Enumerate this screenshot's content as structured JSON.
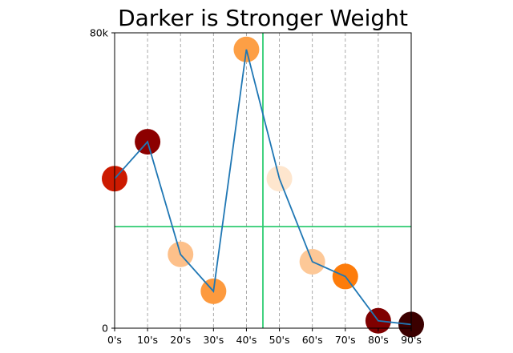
{
  "chart_data": {
    "type": "scatter",
    "title": "Darker is Stronger Weight",
    "xlabel": "",
    "ylabel": "",
    "categories": [
      "0's",
      "10's",
      "20's",
      "30's",
      "40's",
      "50's",
      "60's",
      "70's",
      "80's",
      "90's"
    ],
    "values": [
      40500,
      50500,
      20000,
      10000,
      75500,
      40500,
      18000,
      14000,
      2000,
      1000
    ],
    "point_colors": [
      "#cc1a00",
      "#8c0000",
      "#fdc08a",
      "#fd9a3e",
      "#fd9f45",
      "#fee6ce",
      "#fdc897",
      "#fd7c0b",
      "#7f0000",
      "#3b0000"
    ],
    "ylim": [
      0,
      80000
    ],
    "y_tick_labels": [
      {
        "value": 0,
        "label": "0"
      },
      {
        "value": 80000,
        "label": "80k"
      }
    ],
    "reference_lines": {
      "vertical_x": 4.5,
      "horizontal_y": 27500,
      "color": "#2ecc71"
    },
    "line_color": "#1f77b4",
    "grid": "vertical dashed gridlines at each category",
    "legend": "none"
  }
}
